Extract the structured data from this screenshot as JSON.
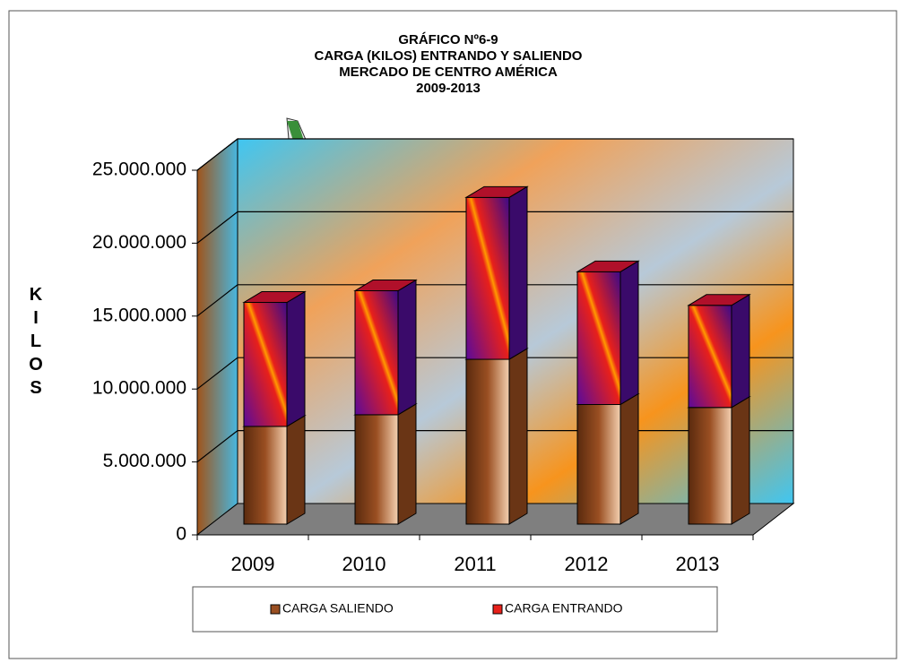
{
  "chart_data": {
    "type": "bar3d-stacked",
    "title": [
      "GRÁFICO Nº6-9",
      "CARGA (KILOS) ENTRANDO Y SALIENDO",
      "MERCADO DE CENTRO AMÉRICA",
      "2009-2013"
    ],
    "y_label": "KILOS",
    "categories": [
      "2009",
      "2010",
      "2011",
      "2012",
      "2013"
    ],
    "series": [
      {
        "name": "CARGA SALIENDO",
        "color": "#9a4f22",
        "values": [
          6700000,
          7500000,
          11300000,
          8200000,
          8000000
        ]
      },
      {
        "name": "CARGA ENTRANDO",
        "color": "#e8201a",
        "values": [
          8500000,
          8500000,
          11100000,
          9100000,
          7000000
        ]
      }
    ],
    "ylim": [
      0,
      25000000
    ],
    "yticks": [
      0,
      {
        "value": 5000000,
        "label": "5.000.000"
      },
      {
        "value": 10000000,
        "label": "10.000.000"
      },
      {
        "value": 15000000,
        "label": "15.000.000"
      },
      {
        "value": 20000000,
        "label": "20.000.000"
      },
      {
        "value": 25000000,
        "label": "25.000.000"
      }
    ],
    "grid": true
  }
}
